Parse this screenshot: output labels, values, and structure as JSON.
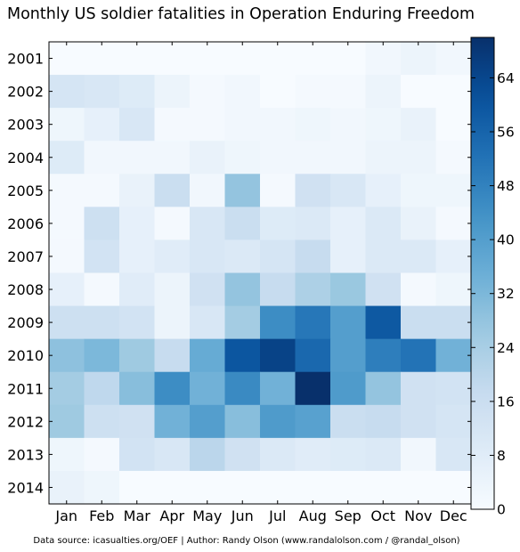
{
  "chart_data": {
    "type": "heatmap",
    "title": "Monthly US soldier fatalities in Operation Enduring Freedom",
    "xlabel": "",
    "ylabel": "",
    "x_categories": [
      "Jan",
      "Feb",
      "Mar",
      "Apr",
      "May",
      "Jun",
      "Jul",
      "Aug",
      "Sep",
      "Oct",
      "Nov",
      "Dec"
    ],
    "y_categories": [
      "2001",
      "2002",
      "2003",
      "2004",
      "2005",
      "2006",
      "2007",
      "2008",
      "2009",
      "2010",
      "2011",
      "2012",
      "2013",
      "2014"
    ],
    "values": [
      [
        0,
        0,
        0,
        0,
        0,
        0,
        0,
        0,
        0,
        2,
        4,
        2
      ],
      [
        12,
        11,
        9,
        4,
        1,
        2,
        0,
        1,
        1,
        4,
        0,
        0
      ],
      [
        3,
        6,
        11,
        1,
        1,
        2,
        2,
        3,
        2,
        3,
        5,
        0
      ],
      [
        9,
        2,
        2,
        2,
        5,
        3,
        2,
        2,
        2,
        4,
        4,
        1
      ],
      [
        1,
        1,
        5,
        16,
        2,
        28,
        1,
        14,
        11,
        6,
        3,
        3
      ],
      [
        1,
        15,
        6,
        1,
        11,
        16,
        9,
        10,
        6,
        10,
        5,
        1
      ],
      [
        1,
        13,
        6,
        8,
        11,
        10,
        12,
        17,
        6,
        10,
        10,
        6
      ],
      [
        6,
        1,
        8,
        4,
        14,
        28,
        17,
        23,
        27,
        14,
        1,
        3
      ],
      [
        15,
        15,
        13,
        4,
        11,
        25,
        45,
        51,
        40,
        59,
        16,
        16
      ],
      [
        29,
        32,
        26,
        17,
        36,
        60,
        65,
        55,
        40,
        49,
        52,
        34
      ],
      [
        25,
        19,
        30,
        45,
        34,
        46,
        34,
        70,
        41,
        28,
        14,
        13
      ],
      [
        26,
        15,
        14,
        34,
        40,
        30,
        41,
        39,
        16,
        17,
        14,
        12
      ],
      [
        3,
        1,
        13,
        11,
        20,
        14,
        10,
        8,
        9,
        10,
        2,
        11
      ],
      [
        5,
        3,
        0,
        0,
        0,
        0,
        0,
        0,
        0,
        0,
        0,
        0
      ]
    ],
    "color_range": [
      0,
      70
    ],
    "colormap": "Blues",
    "colorbar_ticks": [
      0,
      8,
      16,
      24,
      32,
      40,
      48,
      56,
      64
    ],
    "grid": false,
    "legend": "colorbar-right"
  },
  "footer": {
    "source_text": "Data source: icasualties.org/OEF | Author: Randy Olson (www.randalolson.com / @randal_olson)"
  }
}
